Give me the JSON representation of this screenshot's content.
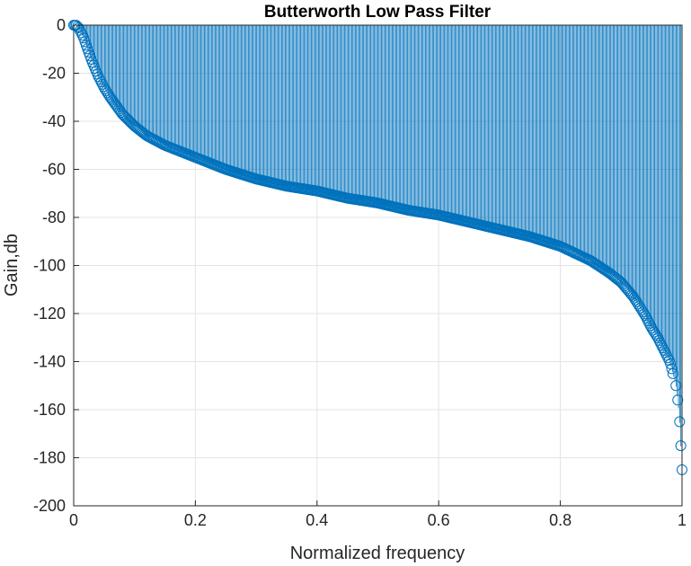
{
  "chart_data": {
    "type": "stem",
    "title": "Butterworth Low Pass Filter",
    "xlabel": "Normalized frequency",
    "ylabel": "Gain,db",
    "xlim": [
      0,
      1
    ],
    "ylim": [
      -200,
      0
    ],
    "xticks": [
      "0",
      "0.2",
      "0.4",
      "0.6",
      "0.8",
      "1"
    ],
    "yticks": [
      "0",
      "-20",
      "-40",
      "-60",
      "-80",
      "-100",
      "-120",
      "-140",
      "-160",
      "-180",
      "-200"
    ],
    "grid": true,
    "series": [
      {
        "color": "#0072BD",
        "x": [
          0.0,
          0.004,
          0.008,
          0.012,
          0.016,
          0.02,
          0.03,
          0.04,
          0.05,
          0.06,
          0.08,
          0.1,
          0.12,
          0.15,
          0.2,
          0.25,
          0.3,
          0.35,
          0.4,
          0.45,
          0.5,
          0.55,
          0.6,
          0.65,
          0.7,
          0.75,
          0.8,
          0.85,
          0.88,
          0.9,
          0.92,
          0.94,
          0.95,
          0.96,
          0.97,
          0.98,
          0.985,
          0.99,
          0.993,
          0.996,
          0.998,
          1.0
        ],
        "y": [
          0,
          0,
          -1,
          -3,
          -5,
          -8,
          -15,
          -21,
          -26,
          -30,
          -37,
          -42,
          -46,
          -50,
          -55,
          -60,
          -64,
          -67,
          -69,
          -72,
          -74,
          -77,
          -79,
          -82,
          -85,
          -88,
          -92,
          -98,
          -103,
          -107,
          -113,
          -121,
          -126,
          -130,
          -135,
          -140,
          -145,
          -150,
          -156,
          -165,
          -175,
          -185
        ]
      }
    ]
  }
}
